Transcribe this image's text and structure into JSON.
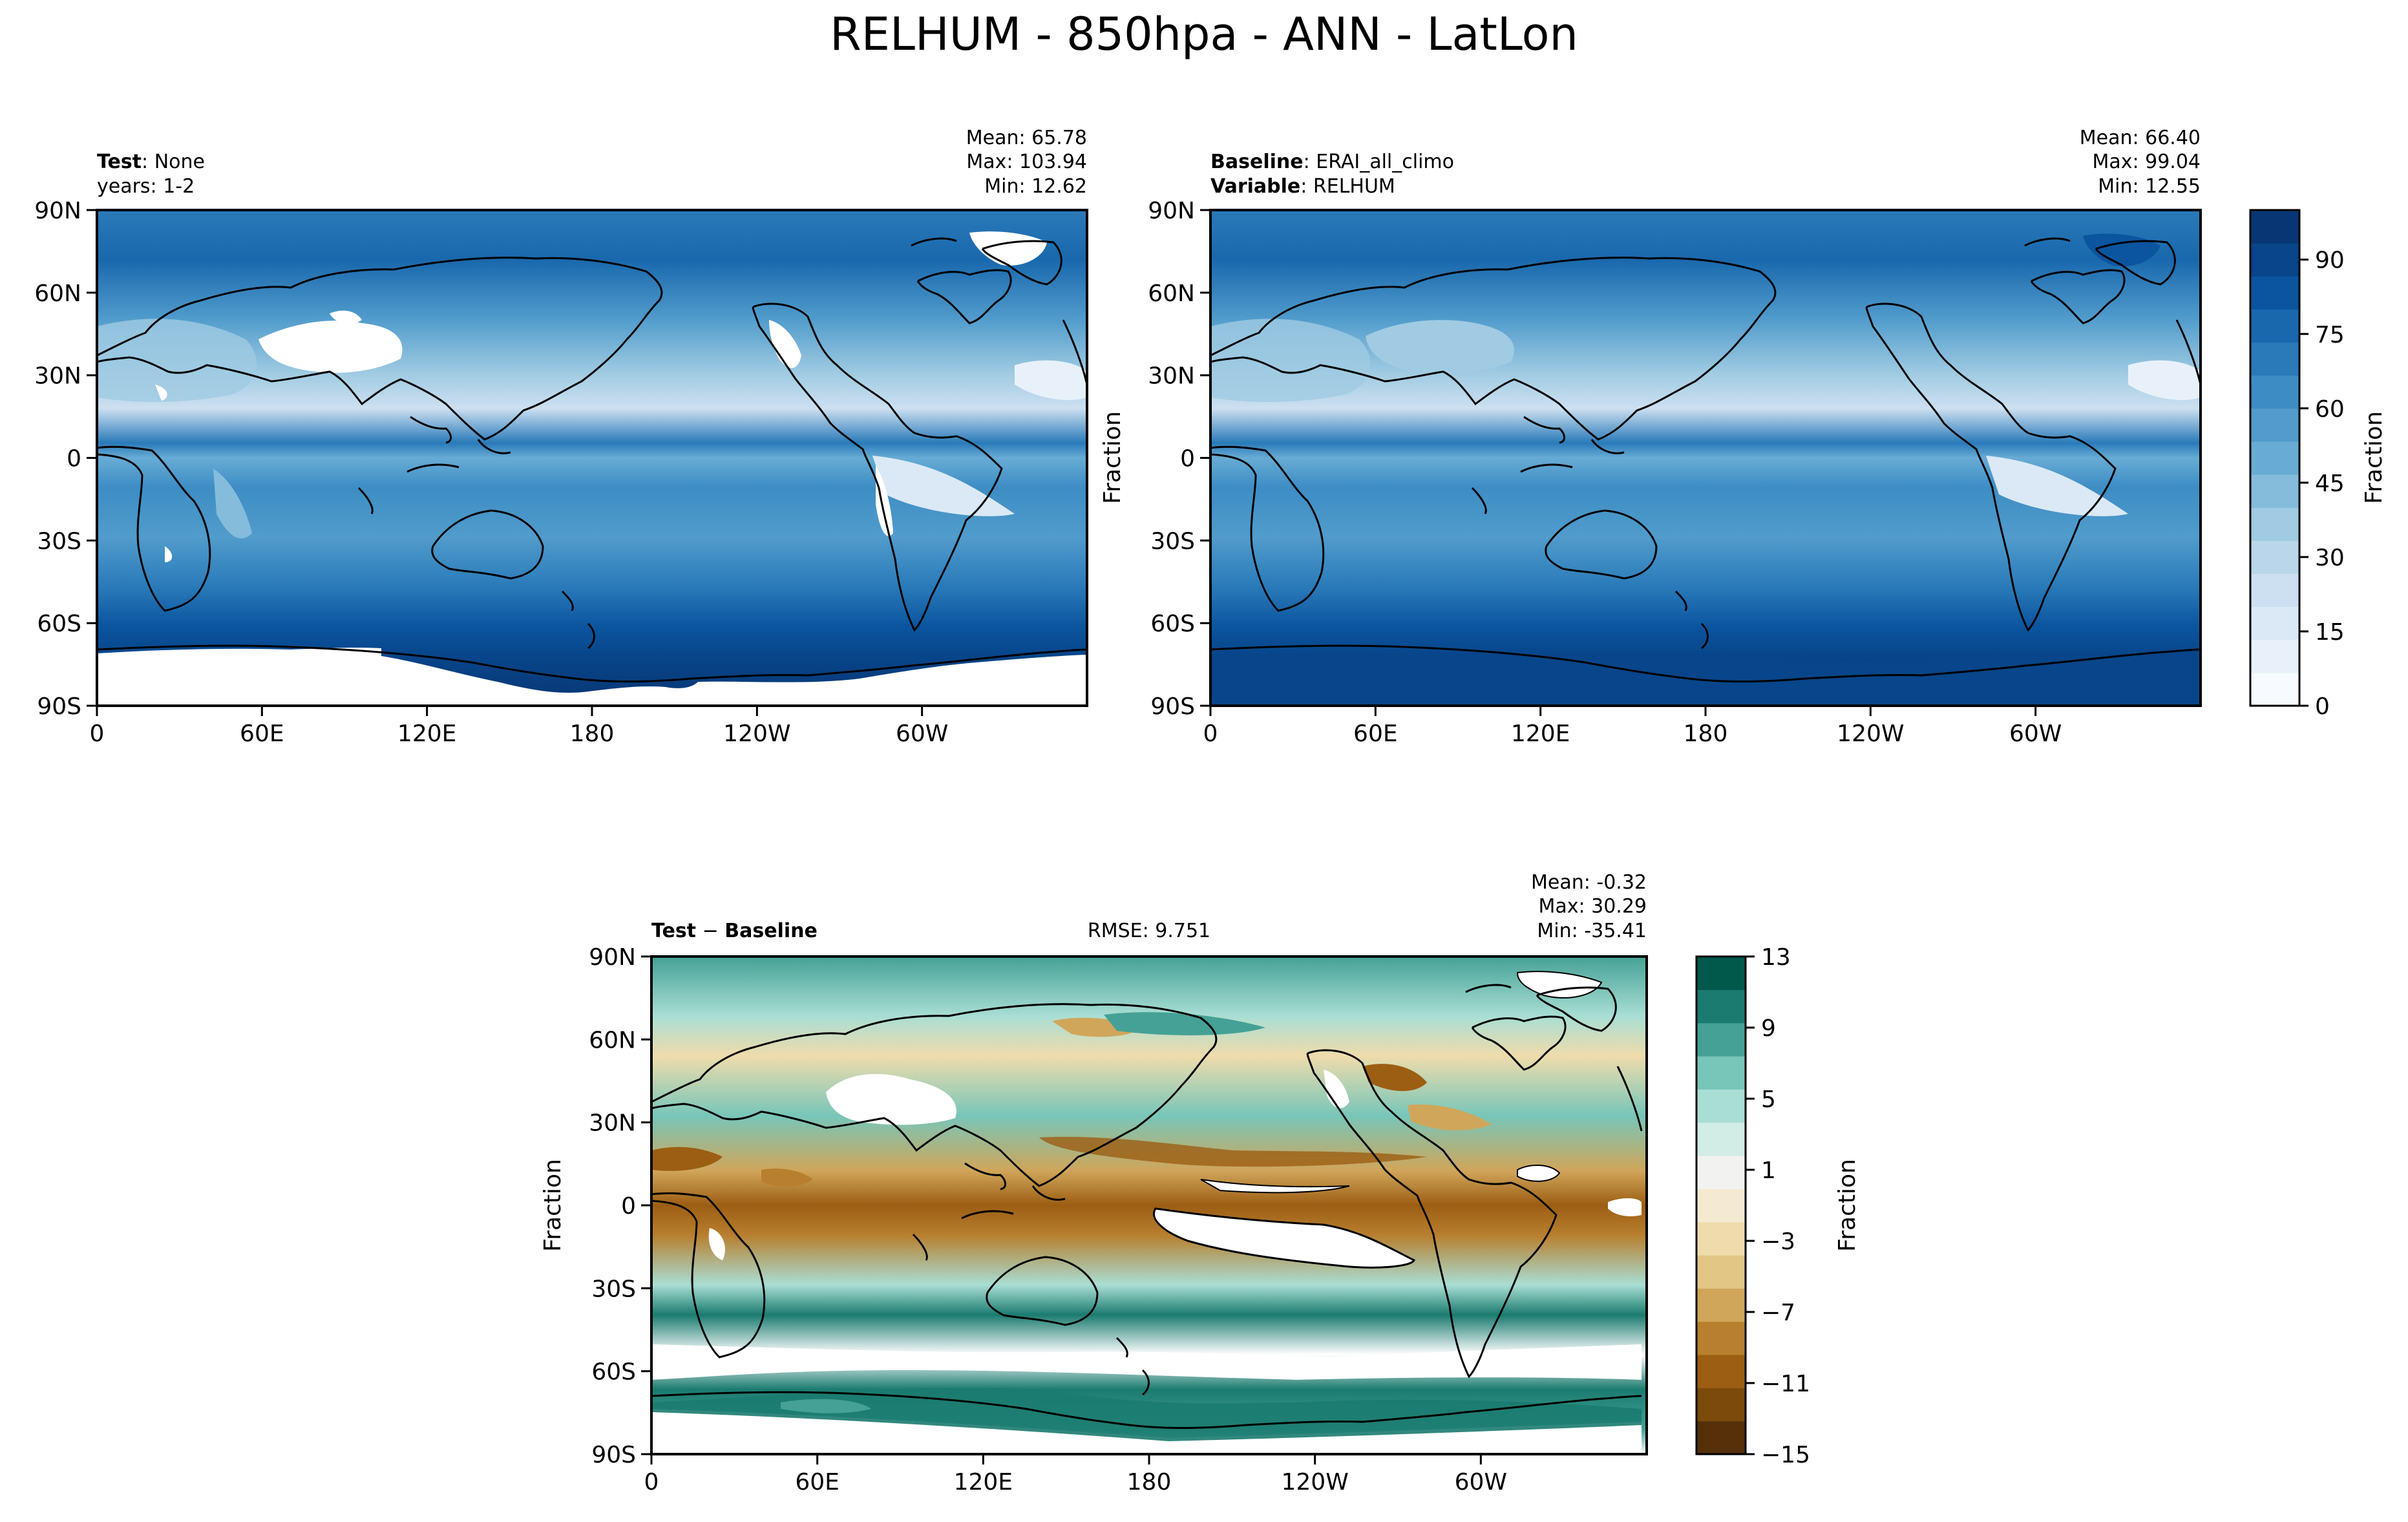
{
  "figure": {
    "title": "RELHUM - 850hpa - ANN - LatLon"
  },
  "panels": {
    "test": {
      "label_bold": "Test",
      "label_value": "None",
      "line2": "years: 1-2",
      "mean": "Mean: 65.78",
      "max": "Max: 103.94",
      "min": "Min: 12.62"
    },
    "baseline": {
      "label_bold": "Baseline",
      "label_value": "ERAI_all_climo",
      "line2_bold": "Variable",
      "line2_value": "RELHUM",
      "ylabel": "Fraction",
      "mean": "Mean: 66.40",
      "max": "Max: 99.04",
      "min": "Min: 12.55"
    },
    "diff": {
      "label_bold_a": "Test",
      "label_sep": " − ",
      "label_bold_b": "Baseline",
      "rmse": "RMSE: 9.751",
      "ylabel": "Fraction",
      "mean": "Mean: -0.32",
      "max": "Max: 30.29",
      "min": "Min: -35.41"
    }
  },
  "axes": {
    "lon_ticks": [
      "0",
      "60E",
      "120E",
      "180",
      "120W",
      "60W"
    ],
    "lat_ticks": [
      "90N",
      "60N",
      "30N",
      "0",
      "30S",
      "60S",
      "90S"
    ]
  },
  "colorbars": {
    "main": {
      "label": "Fraction",
      "ticks": [
        "0",
        "15",
        "30",
        "45",
        "60",
        "75",
        "90"
      ],
      "range": [
        0,
        100
      ],
      "colors": [
        "#f7fbff",
        "#e8f1fa",
        "#dbe9f6",
        "#cde0f1",
        "#bad6eb",
        "#a0cbe2",
        "#85bcdc",
        "#68acd5",
        "#519ccc",
        "#3d8dc4",
        "#2a7ab9",
        "#1968ad",
        "#0b559f",
        "#08458a",
        "#083674"
      ]
    },
    "diff": {
      "label": "Fraction",
      "ticks": [
        "13",
        "9",
        "5",
        "1",
        "−3",
        "−7",
        "−11",
        "−15"
      ],
      "range": [
        -15,
        13
      ],
      "colors": [
        "#553009",
        "#7c4a0b",
        "#9c5e13",
        "#b87f2f",
        "#d0a65b",
        "#e1c685",
        "#efdcac",
        "#f4ead2",
        "#f2f2f0",
        "#d2ece6",
        "#a9ded4",
        "#78c6b9",
        "#45a196",
        "#1b7b70",
        "#01594c"
      ]
    }
  },
  "chart_data": [
    {
      "type": "heatmap",
      "title": "Test: None",
      "subtitle": "years: 1-2",
      "xticks": [
        "0",
        "60E",
        "120E",
        "180",
        "120W",
        "60W"
      ],
      "yticks": [
        "90N",
        "60N",
        "30N",
        "0",
        "30S",
        "60S",
        "90S"
      ],
      "xlim": [
        0,
        360
      ],
      "ylim": [
        -90,
        90
      ],
      "stats": {
        "mean": 65.78,
        "max": 103.94,
        "min": 12.62
      },
      "colorbar_range": [
        0,
        100
      ]
    },
    {
      "type": "heatmap",
      "title": "Baseline: ERAI_all_climo",
      "subtitle": "Variable: RELHUM",
      "ylabel": "Fraction",
      "xticks": [
        "0",
        "60E",
        "120E",
        "180",
        "120W",
        "60W"
      ],
      "yticks": [
        "90N",
        "60N",
        "30N",
        "0",
        "30S",
        "60S",
        "90S"
      ],
      "xlim": [
        0,
        360
      ],
      "ylim": [
        -90,
        90
      ],
      "stats": {
        "mean": 66.4,
        "max": 99.04,
        "min": 12.55
      },
      "colorbar_range": [
        0,
        100
      ]
    },
    {
      "type": "heatmap",
      "title": "Test − Baseline",
      "subtitle": "RMSE: 9.751",
      "ylabel": "Fraction",
      "xticks": [
        "0",
        "60E",
        "120E",
        "180",
        "120W",
        "60W"
      ],
      "yticks": [
        "90N",
        "60N",
        "30N",
        "0",
        "30S",
        "60S",
        "90S"
      ],
      "xlim": [
        0,
        360
      ],
      "ylim": [
        -90,
        90
      ],
      "stats": {
        "mean": -0.32,
        "max": 30.29,
        "min": -35.41,
        "rmse": 9.751
      },
      "colorbar_range": [
        -15,
        13
      ]
    }
  ]
}
